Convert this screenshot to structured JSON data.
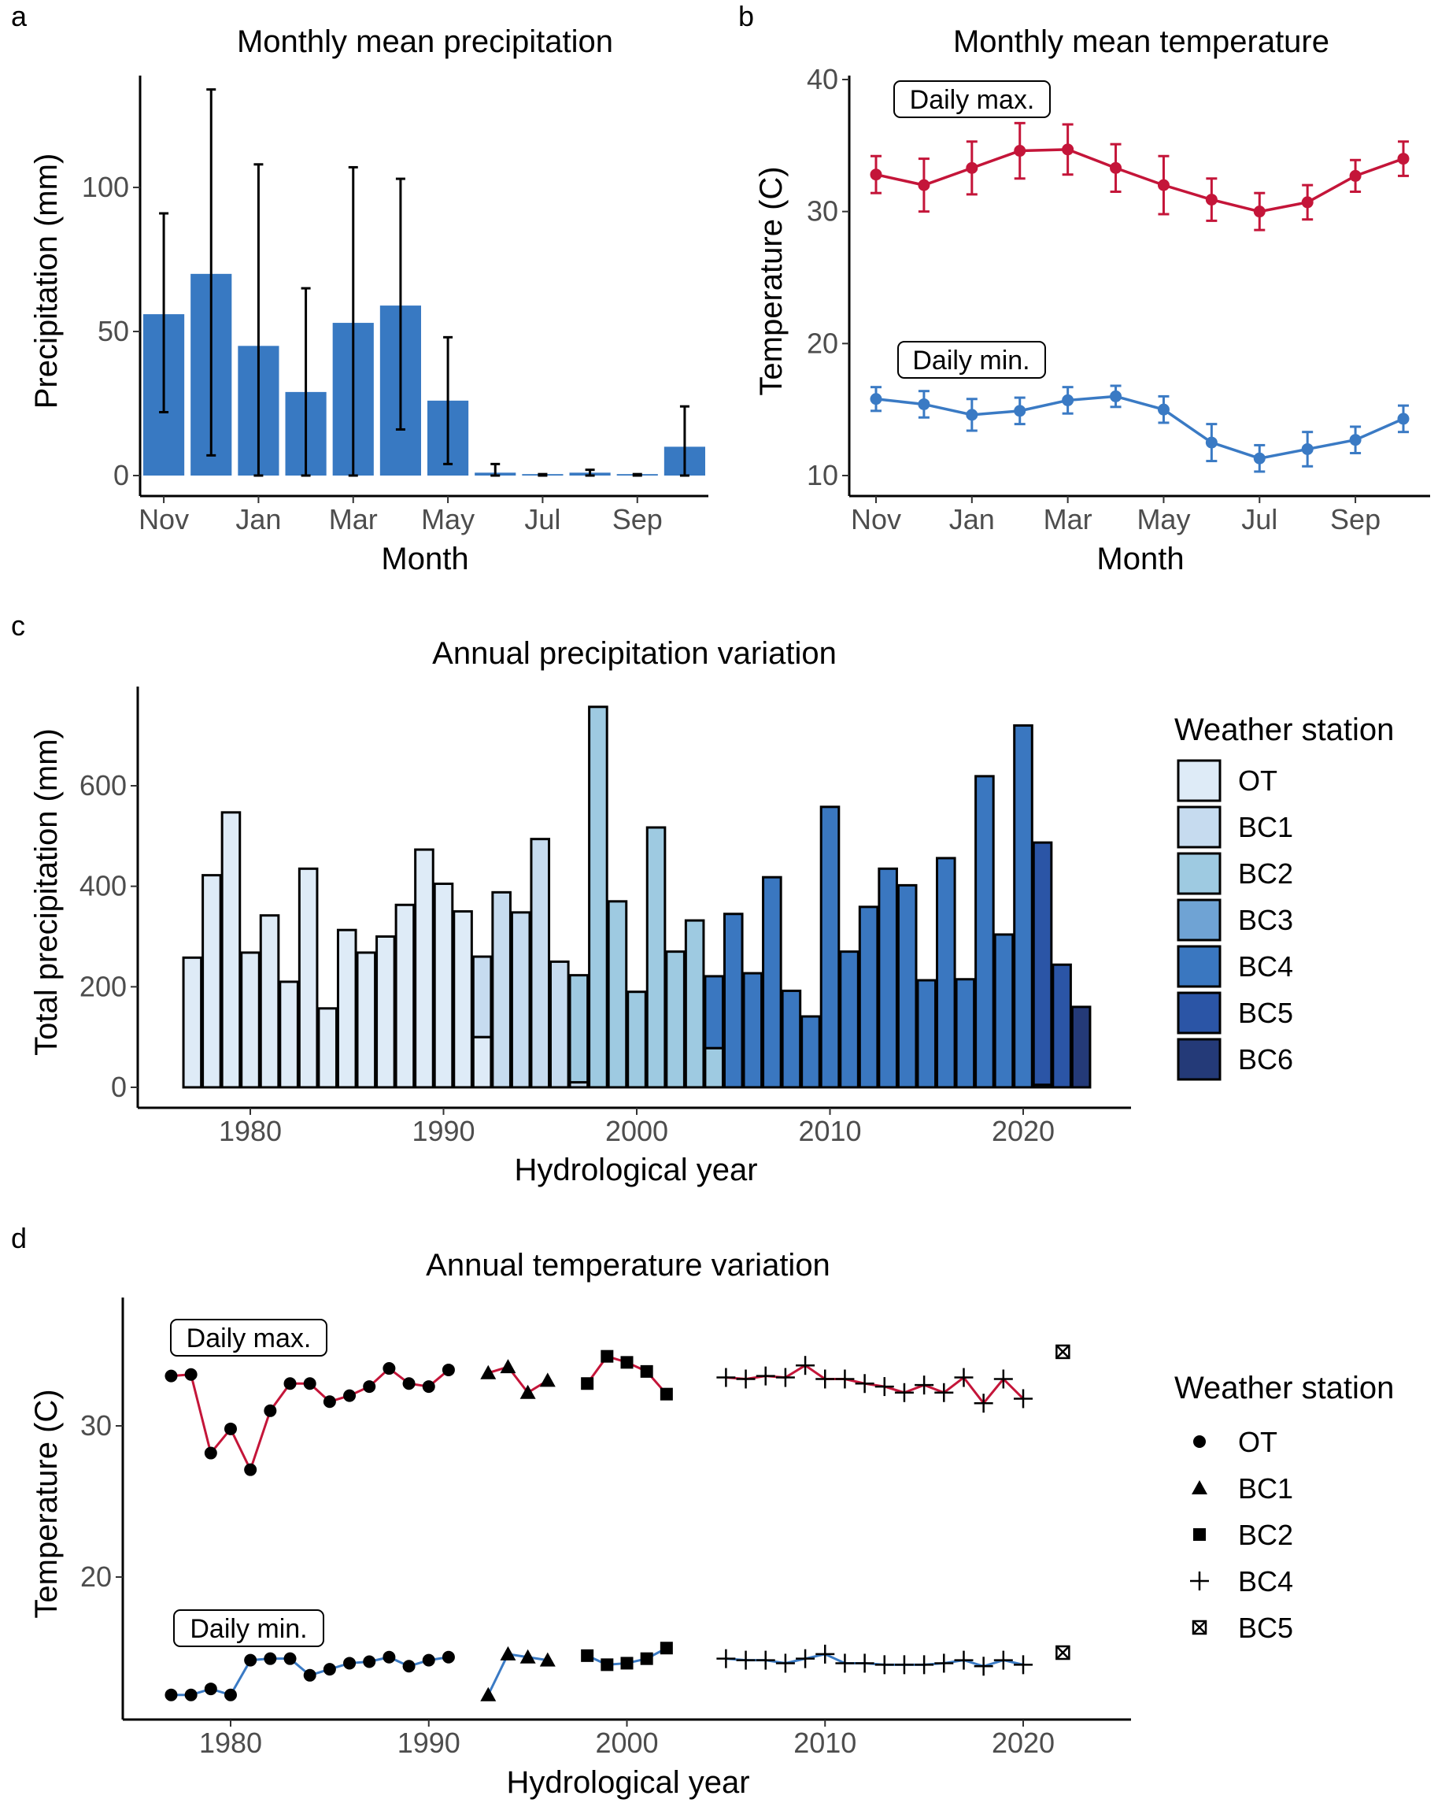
{
  "colors": {
    "max": "#c41539",
    "min": "#3a7ac4",
    "bar_blue": "#3879c2",
    "errorbar": "#000000",
    "stations": {
      "OT": "#deebf7",
      "BC1": "#c6dbef",
      "BC2": "#9ecae1",
      "BC3": "#6fa3d4",
      "BC4": "#3a77c0",
      "BC5": "#2b55a6",
      "BC6": "#243a78"
    }
  },
  "chart_data": [
    {
      "panel": "a",
      "type": "bar",
      "title": "Monthly mean precipitation",
      "xlabel": "Month",
      "ylabel": "Precipitation (mm)",
      "ylim": [
        0,
        138
      ],
      "yticks": [
        0,
        50,
        100
      ],
      "categories": [
        "Nov",
        "Dec",
        "Jan",
        "Feb",
        "Mar",
        "Apr",
        "May",
        "Jun",
        "Jul",
        "Aug",
        "Sep",
        "Oct"
      ],
      "x_tick_labels": [
        "Nov",
        "Jan",
        "Mar",
        "May",
        "Jul",
        "Sep"
      ],
      "values": [
        56,
        70,
        45,
        29,
        53,
        59,
        26,
        1,
        0.5,
        1,
        0.5,
        10
      ],
      "err_low": [
        22,
        7,
        0,
        0,
        0,
        16,
        4,
        0,
        0,
        0,
        0,
        0
      ],
      "err_high": [
        91,
        134,
        108,
        65,
        107,
        103,
        48,
        4,
        0.5,
        2,
        0.5,
        24
      ]
    },
    {
      "panel": "b",
      "type": "line",
      "title": "Monthly mean temperature",
      "xlabel": "Month",
      "ylabel": "Temperature (C)",
      "ylim": [
        9,
        41
      ],
      "yticks": [
        10,
        20,
        30,
        40
      ],
      "categories": [
        "Nov",
        "Dec",
        "Jan",
        "Feb",
        "Mar",
        "Apr",
        "May",
        "Jun",
        "Jul",
        "Aug",
        "Sep",
        "Oct"
      ],
      "x_tick_labels": [
        "Nov",
        "Jan",
        "Mar",
        "May",
        "Jul",
        "Sep"
      ],
      "annotations": [
        "Daily max.",
        "Daily min."
      ],
      "series": [
        {
          "name": "Daily max.",
          "values": [
            32.8,
            32.0,
            33.3,
            34.6,
            34.7,
            33.3,
            32.0,
            30.9,
            30.0,
            30.7,
            32.7,
            34.0
          ],
          "err": [
            1.4,
            2.0,
            2.0,
            2.1,
            1.9,
            1.8,
            2.2,
            1.6,
            1.4,
            1.3,
            1.2,
            1.3
          ]
        },
        {
          "name": "Daily min.",
          "values": [
            15.8,
            15.4,
            14.6,
            14.9,
            15.7,
            16.0,
            15.0,
            12.5,
            11.3,
            12.0,
            12.7,
            14.3
          ],
          "err": [
            0.9,
            1.0,
            1.2,
            1.0,
            1.0,
            0.8,
            1.0,
            1.4,
            1.0,
            1.3,
            1.0,
            1.0
          ]
        }
      ]
    },
    {
      "panel": "c",
      "type": "bar",
      "title": "Annual precipitation variation",
      "xlabel": "Hydrological year",
      "ylabel": "Total precipitation (mm)",
      "ylim": [
        -40,
        795
      ],
      "yticks": [
        0,
        200,
        400,
        600
      ],
      "xlim": [
        1975.3,
        2025.7
      ],
      "xticks": [
        1980,
        1990,
        2000,
        2010,
        2020
      ],
      "legend_title": "Weather station",
      "legend_position": "right",
      "legend": [
        "OT",
        "BC1",
        "BC2",
        "BC3",
        "BC4",
        "BC5",
        "BC6"
      ],
      "bars": [
        {
          "year": 1977,
          "station": "OT",
          "value": 258
        },
        {
          "year": 1978,
          "station": "OT",
          "value": 422
        },
        {
          "year": 1979,
          "station": "OT",
          "value": 547
        },
        {
          "year": 1980,
          "station": "OT",
          "value": 268
        },
        {
          "year": 1981,
          "station": "OT",
          "value": 342
        },
        {
          "year": 1982,
          "station": "OT",
          "value": 210
        },
        {
          "year": 1983,
          "station": "OT",
          "value": 435
        },
        {
          "year": 1984,
          "station": "OT",
          "value": 157
        },
        {
          "year": 1985,
          "station": "OT",
          "value": 313
        },
        {
          "year": 1986,
          "station": "OT",
          "value": 268
        },
        {
          "year": 1987,
          "station": "OT",
          "value": 300
        },
        {
          "year": 1988,
          "station": "OT",
          "value": 363
        },
        {
          "year": 1989,
          "station": "OT",
          "value": 473
        },
        {
          "year": 1990,
          "station": "OT",
          "value": 405
        },
        {
          "year": 1991,
          "station": "OT",
          "value": 350
        },
        {
          "year": 1992,
          "station": "OT",
          "value": 100
        },
        {
          "year": 1992,
          "station": "BC1",
          "value": 160
        },
        {
          "year": 1993,
          "station": "BC1",
          "value": 388
        },
        {
          "year": 1994,
          "station": "BC1",
          "value": 348
        },
        {
          "year": 1995,
          "station": "BC1",
          "value": 494
        },
        {
          "year": 1996,
          "station": "BC1",
          "value": 250
        },
        {
          "year": 1997,
          "station": "BC1",
          "value": 10
        },
        {
          "year": 1997,
          "station": "BC2",
          "value": 213
        },
        {
          "year": 1998,
          "station": "BC2",
          "value": 757
        },
        {
          "year": 1999,
          "station": "BC2",
          "value": 370
        },
        {
          "year": 2000,
          "station": "BC2",
          "value": 190
        },
        {
          "year": 2001,
          "station": "BC2",
          "value": 517
        },
        {
          "year": 2002,
          "station": "BC2",
          "value": 270
        },
        {
          "year": 2003,
          "station": "BC2",
          "value": 332
        },
        {
          "year": 2004,
          "station": "BC2",
          "value": 78
        },
        {
          "year": 2004,
          "station": "BC4",
          "value": 143
        },
        {
          "year": 2005,
          "station": "BC4",
          "value": 345
        },
        {
          "year": 2006,
          "station": "BC4",
          "value": 227
        },
        {
          "year": 2007,
          "station": "BC4",
          "value": 418
        },
        {
          "year": 2008,
          "station": "BC4",
          "value": 192
        },
        {
          "year": 2009,
          "station": "BC4",
          "value": 141
        },
        {
          "year": 2010,
          "station": "BC4",
          "value": 558
        },
        {
          "year": 2011,
          "station": "BC4",
          "value": 270
        },
        {
          "year": 2012,
          "station": "BC4",
          "value": 359
        },
        {
          "year": 2013,
          "station": "BC4",
          "value": 435
        },
        {
          "year": 2014,
          "station": "BC4",
          "value": 402
        },
        {
          "year": 2015,
          "station": "BC4",
          "value": 213
        },
        {
          "year": 2016,
          "station": "BC4",
          "value": 456
        },
        {
          "year": 2017,
          "station": "BC4",
          "value": 215
        },
        {
          "year": 2018,
          "station": "BC4",
          "value": 619
        },
        {
          "year": 2019,
          "station": "BC4",
          "value": 304
        },
        {
          "year": 2020,
          "station": "BC4",
          "value": 720
        },
        {
          "year": 2021,
          "station": "BC4",
          "value": 5
        },
        {
          "year": 2021,
          "station": "BC5",
          "value": 482
        },
        {
          "year": 2022,
          "station": "BC5",
          "value": 244
        },
        {
          "year": 2023,
          "station": "BC6",
          "value": 160
        }
      ]
    },
    {
      "panel": "d",
      "type": "scatter",
      "title": "Annual temperature variation",
      "xlabel": "Hydrological year",
      "ylabel": "Temperature (C)",
      "ylim": [
        11.5,
        38.5
      ],
      "yticks": [
        20,
        30
      ],
      "xlim": [
        1974.6,
        2025.4
      ],
      "xticks": [
        1980,
        1990,
        2000,
        2010,
        2020
      ],
      "annotations": [
        "Daily max.",
        "Daily min."
      ],
      "legend_title": "Weather station",
      "legend_position": "right",
      "legend": [
        "OT",
        "BC1",
        "BC2",
        "BC4",
        "BC5"
      ],
      "segments": [
        {
          "station": "OT",
          "x": [
            1977,
            1978,
            1979,
            1980,
            1981,
            1982,
            1983,
            1984,
            1985,
            1986,
            1987,
            1988,
            1989,
            1990,
            1991
          ],
          "max": [
            33.3,
            33.4,
            28.2,
            29.8,
            27.1,
            31.0,
            32.8,
            32.8,
            31.6,
            32.0,
            32.6,
            33.8,
            32.8,
            32.6,
            33.7
          ],
          "min": [
            12.2,
            12.2,
            12.6,
            12.2,
            14.5,
            14.6,
            14.6,
            13.5,
            13.9,
            14.3,
            14.4,
            14.7,
            14.1,
            14.5,
            14.7
          ]
        },
        {
          "station": "BC1",
          "x": [
            1993,
            1994,
            1995,
            1996
          ],
          "max": [
            33.5,
            33.9,
            32.2,
            33.0
          ],
          "min": [
            12.2,
            14.9,
            14.7,
            14.5
          ]
        },
        {
          "station": "BC2",
          "x": [
            1998,
            1999,
            2000,
            2001,
            2002
          ],
          "max": [
            32.8,
            34.6,
            34.2,
            33.6,
            32.1
          ],
          "min": [
            14.8,
            14.2,
            14.3,
            14.6,
            15.3
          ]
        },
        {
          "station": "BC4",
          "x": [
            2005,
            2006,
            2007,
            2008,
            2009,
            2010,
            2011,
            2012,
            2013,
            2014,
            2015,
            2016,
            2017,
            2018,
            2019,
            2020
          ],
          "max": [
            33.2,
            33.1,
            33.3,
            33.2,
            34.0,
            33.1,
            33.1,
            32.8,
            32.6,
            32.2,
            32.7,
            32.2,
            33.2,
            31.5,
            33.1,
            31.8
          ],
          "min": [
            14.6,
            14.5,
            14.5,
            14.3,
            14.6,
            14.9,
            14.3,
            14.3,
            14.2,
            14.2,
            14.2,
            14.3,
            14.5,
            14.1,
            14.5,
            14.2
          ]
        },
        {
          "station": "BC5",
          "x": [
            2022
          ],
          "max": [
            34.9
          ],
          "min": [
            15.0
          ]
        }
      ]
    }
  ],
  "panels": {
    "a": {
      "letter": "a",
      "title": "Monthly mean precipitation",
      "xlabel": "Month",
      "ylabel": "Precipitation (mm)"
    },
    "b": {
      "letter": "b",
      "title": "Monthly mean temperature",
      "xlabel": "Month",
      "ylabel": "Temperature (C)",
      "max_label": "Daily max.",
      "min_label": "Daily min."
    },
    "c": {
      "letter": "c",
      "title": "Annual precipitation variation",
      "xlabel": "Hydrological year",
      "ylabel": "Total precipitation (mm)",
      "legend_title": "Weather station"
    },
    "d": {
      "letter": "d",
      "title": "Annual temperature variation",
      "xlabel": "Hydrological year",
      "ylabel": "Temperature (C)",
      "legend_title": "Weather station",
      "max_label": "Daily max.",
      "min_label": "Daily min."
    }
  }
}
